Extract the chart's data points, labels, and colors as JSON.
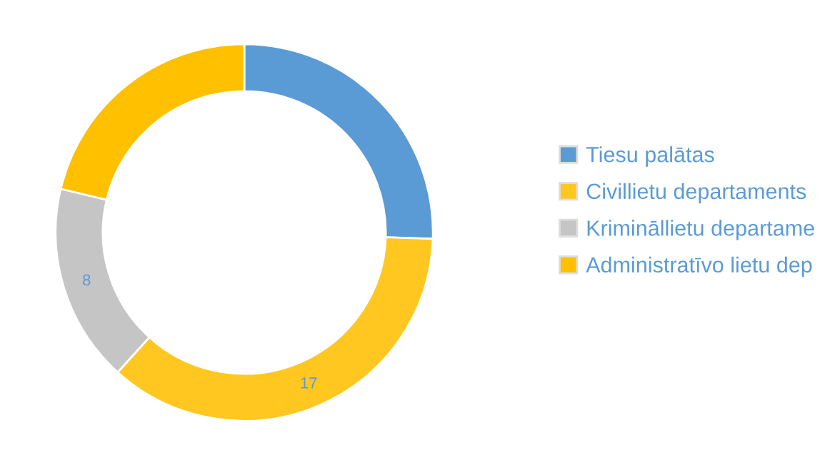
{
  "chart_data": {
    "type": "donut",
    "categories": [
      "Tiesu palātas",
      "Civillietu departaments",
      "Krimināllietu departame",
      "Administratīvo lietu dep"
    ],
    "values": [
      12,
      17,
      8,
      10
    ],
    "colors": [
      "#5b9bd5",
      "#ffc71f",
      "#c5c5c5",
      "#ffc000"
    ],
    "value_labels": [
      null,
      "17",
      "8",
      null
    ],
    "legend": "right"
  }
}
